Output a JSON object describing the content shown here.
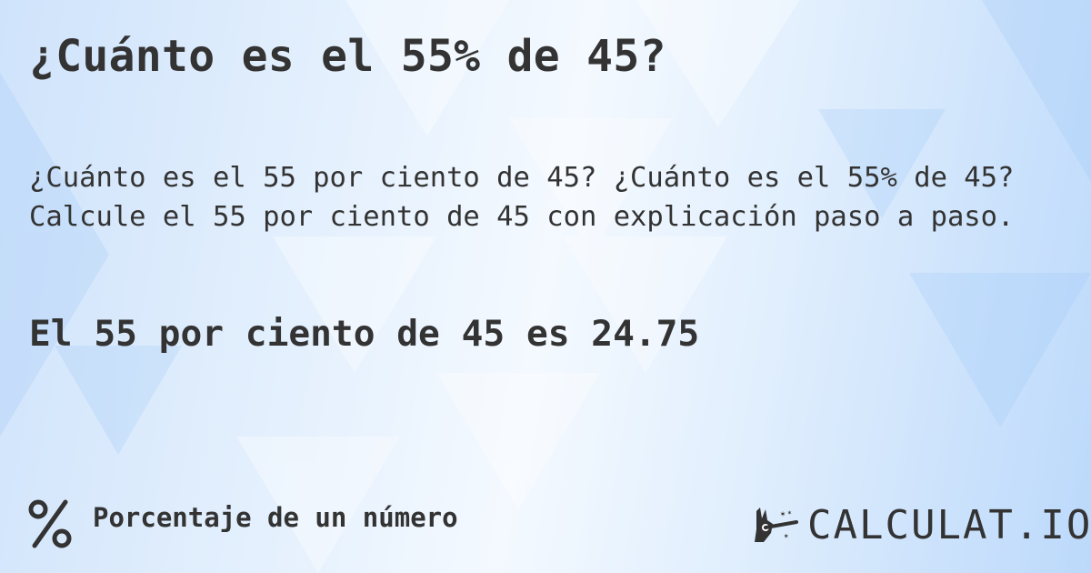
{
  "title": "¿Cuánto es el 55% de 45?",
  "description": [
    "¿Cuánto es el 55 por ciento de 45? ¿Cuánto es el 55% de 45?",
    "Calcule el 55 por ciento de 45 con explicación paso a paso."
  ],
  "result": "El 55 por ciento de 45 es 24.75",
  "footer": {
    "icon": "percent-icon",
    "label": "Porcentaje de un número"
  },
  "logo": {
    "text": "CALCULAT.IO",
    "icon": "magic-hand-icon"
  },
  "colors": {
    "text": "#333333",
    "background": "#dbeafc"
  }
}
